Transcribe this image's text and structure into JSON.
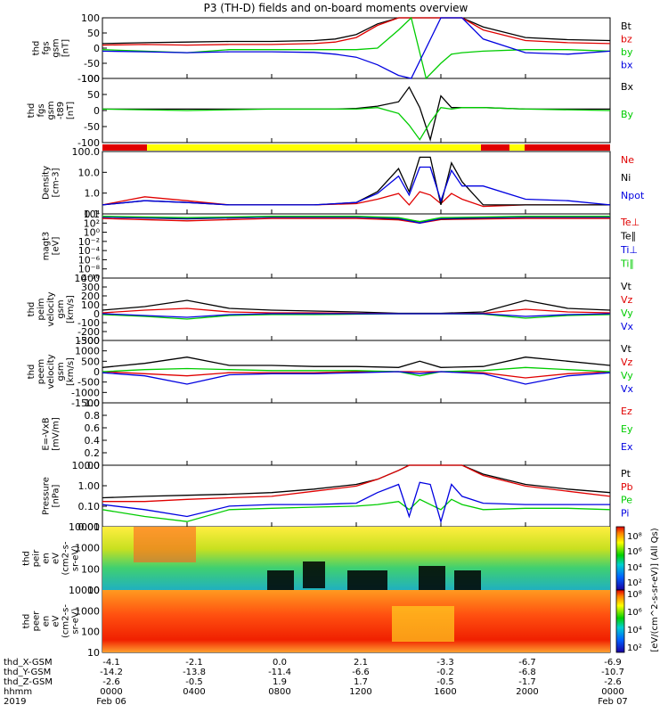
{
  "title": "P3 (TH-D) fields and on-board moments overview",
  "colors": {
    "black": "#000000",
    "red": "#e00000",
    "green": "#00cc00",
    "blue": "#0000e0",
    "yellow": "#ffff00"
  },
  "panels": [
    {
      "id": "fgs",
      "ylabel": [
        "thd",
        "fgs",
        "gsm",
        "[nT]"
      ],
      "ticks": [
        "100",
        "50",
        "0",
        "-50",
        "-100"
      ],
      "legend": [
        {
          "text": "Bt",
          "color": "#000000"
        },
        {
          "text": "bz",
          "color": "#e00000"
        },
        {
          "text": "by",
          "color": "#00cc00"
        },
        {
          "text": "bx",
          "color": "#0000e0"
        }
      ]
    },
    {
      "id": "fgs_dt",
      "ylabel": [
        "thd",
        "fgs",
        "gsm",
        "-t89",
        "[nT]"
      ],
      "ticks": [
        "100",
        "50",
        "0",
        "-50",
        "-100"
      ],
      "legend": [
        {
          "text": "Bx",
          "color": "#000000"
        },
        {
          "text": "By",
          "color": "#00cc00"
        }
      ]
    },
    {
      "id": "density",
      "ylabel": [
        "Density",
        "[cm-3]"
      ],
      "ticks": [
        "100.0",
        "10.0",
        "1.0",
        "0.1"
      ],
      "legend": [
        {
          "text": "Ne",
          "color": "#e00000"
        },
        {
          "text": "Ni",
          "color": "#000000"
        },
        {
          "text": "Npot",
          "color": "#0000e0"
        }
      ]
    },
    {
      "id": "temp",
      "ylabel": [
        "magt3",
        "[eV]"
      ],
      "ticks": [
        "10⁴",
        "10²",
        "10⁰",
        "10⁻²",
        "10⁻⁴",
        "10⁻⁶",
        "10⁻⁸",
        "10⁻¹⁰"
      ],
      "legend": [
        {
          "text": "Te⊥",
          "color": "#e00000"
        },
        {
          "text": "Te∥",
          "color": "#000000"
        },
        {
          "text": "Ti⊥",
          "color": "#0000e0"
        },
        {
          "text": "Ti∥",
          "color": "#00cc00"
        }
      ]
    },
    {
      "id": "vi",
      "ylabel": [
        "thd",
        "peim",
        "velocity",
        "gsm",
        "[km/s]"
      ],
      "ticks": [
        "400",
        "300",
        "200",
        "100",
        "0",
        "-100",
        "-200",
        "-300"
      ],
      "legend": [
        {
          "text": "Vt",
          "color": "#000000"
        },
        {
          "text": "Vz",
          "color": "#e00000"
        },
        {
          "text": "Vy",
          "color": "#00cc00"
        },
        {
          "text": "Vx",
          "color": "#0000e0"
        }
      ]
    },
    {
      "id": "ve",
      "ylabel": [
        "thd",
        "peem",
        "velocity",
        "gsm",
        "[km/s]"
      ],
      "ticks": [
        "1500",
        "1000",
        "500",
        "0",
        "-500",
        "-1000",
        "-1500"
      ],
      "legend": [
        {
          "text": "Vt",
          "color": "#000000"
        },
        {
          "text": "Vz",
          "color": "#e00000"
        },
        {
          "text": "Vy",
          "color": "#00cc00"
        },
        {
          "text": "Vx",
          "color": "#0000e0"
        }
      ]
    },
    {
      "id": "efield",
      "ylabel": [
        "E=-VxB",
        "[mV/m]"
      ],
      "ticks": [
        "1.0",
        "0.8",
        "0.6",
        "0.4",
        "0.2",
        "0.0"
      ],
      "legend": [
        {
          "text": "Ez",
          "color": "#e00000"
        },
        {
          "text": "Ey",
          "color": "#00cc00"
        },
        {
          "text": "Ex",
          "color": "#0000e0"
        }
      ]
    },
    {
      "id": "pressure",
      "ylabel": [
        "Pressure",
        "[nPa]"
      ],
      "ticks": [
        "10.00",
        "1.00",
        "0.10",
        "0.01"
      ],
      "legend": [
        {
          "text": "Pt",
          "color": "#000000"
        },
        {
          "text": "Pb",
          "color": "#e00000"
        },
        {
          "text": "Pe",
          "color": "#00cc00"
        },
        {
          "text": "Pi",
          "color": "#0000e0"
        }
      ]
    },
    {
      "id": "peir",
      "ylabel": [
        "thd",
        "peir",
        "en",
        "eV",
        "(cm2-s-",
        "sr-eV)"
      ],
      "ticks": [
        "10000",
        "1000",
        "100",
        "10"
      ],
      "legend": []
    },
    {
      "id": "peer",
      "ylabel": [
        "thd",
        "peer",
        "en",
        "eV",
        "(cm2-s-",
        "sr-eV)"
      ],
      "ticks": [
        "10000",
        "1000",
        "100",
        "10"
      ],
      "legend": []
    }
  ],
  "colorbar": {
    "label": "[eV/(cm^2-s-sr-eV)] (All Qs)",
    "ticks_top": [
      "10⁸",
      "10⁶",
      "10⁴",
      "10²"
    ],
    "ticks_bottom": [
      "10⁸",
      "10⁶",
      "10⁴",
      "10²"
    ]
  },
  "status_bar": {
    "colors": [
      "red",
      "yellow",
      "red",
      "yellow",
      "red"
    ]
  },
  "ephemeris": {
    "rows": [
      {
        "label": "thd_X-GSM",
        "values": [
          "-4.1",
          "-2.1",
          "0.0",
          "2.1",
          "",
          "-3.3",
          "",
          "-6.7",
          "",
          "-6.9"
        ]
      },
      {
        "label": "thd_Y-GSM",
        "values": [
          "-14.2",
          "-13.8",
          "-11.4",
          "-6.6",
          "",
          "-0.2",
          "",
          "-6.8",
          "",
          "-10.7"
        ]
      },
      {
        "label": "thd_Z-GSM",
        "values": [
          "-2.6",
          "-0.5",
          "1.9",
          "1.7",
          "",
          "-0.5",
          "",
          "-1.7",
          "",
          "-2.6"
        ]
      },
      {
        "label": "hhmm",
        "values": [
          "0000",
          "0400",
          "0800",
          "1200",
          "",
          "1600",
          "",
          "2000",
          "",
          "0000"
        ]
      },
      {
        "label": "2019",
        "values": [
          "Feb 06",
          "",
          "",
          "",
          "",
          "",
          "",
          "",
          "",
          "Feb 07"
        ]
      }
    ]
  },
  "chart_data": [
    {
      "type": "line",
      "title": "P3 (TH-D) fields and on-board moments overview",
      "ylabel": "thd fgs gsm [nT]",
      "ylim": [
        -100,
        100
      ],
      "x_hours": [
        0,
        2,
        4,
        6,
        8,
        10,
        11,
        12,
        13,
        14,
        14.6,
        15.3,
        16,
        16.5,
        17,
        18,
        20,
        22,
        24
      ],
      "series": [
        {
          "name": "Bt",
          "values": [
            15,
            18,
            20,
            22,
            22,
            25,
            30,
            45,
            80,
            100,
            100,
            100,
            100,
            100,
            100,
            70,
            35,
            28,
            25
          ]
        },
        {
          "name": "bz",
          "values": [
            10,
            12,
            10,
            12,
            12,
            15,
            20,
            35,
            75,
            100,
            100,
            100,
            100,
            100,
            100,
            60,
            25,
            18,
            15
          ]
        },
        {
          "name": "by",
          "values": [
            -5,
            -10,
            -15,
            -5,
            -5,
            -5,
            -5,
            -5,
            0,
            60,
            100,
            -100,
            -50,
            -20,
            -15,
            -10,
            -5,
            -5,
            -10
          ]
        },
        {
          "name": "bx",
          "values": [
            -10,
            -12,
            -15,
            -12,
            -12,
            -14,
            -20,
            -30,
            -55,
            -90,
            -100,
            0,
            100,
            100,
            100,
            30,
            -15,
            -20,
            -10
          ]
        }
      ]
    },
    {
      "type": "line",
      "ylabel": "thd fgs gsm -t89 [nT]",
      "ylim": [
        -120,
        100
      ],
      "x_hours": [
        0,
        4,
        8,
        11,
        12,
        13,
        14,
        14.5,
        15,
        15.5,
        16,
        16.5,
        17,
        18,
        20,
        24
      ],
      "series": [
        {
          "name": "Bx",
          "values": [
            -5,
            -5,
            -5,
            -5,
            -3,
            5,
            20,
            70,
            0,
            -110,
            40,
            0,
            0,
            0,
            -5,
            -5
          ]
        },
        {
          "name": "By",
          "values": [
            -5,
            -10,
            -5,
            -5,
            -5,
            0,
            -20,
            -60,
            -110,
            -50,
            0,
            -5,
            0,
            0,
            -5,
            -10
          ]
        }
      ]
    },
    {
      "type": "line",
      "ylabel": "Density [cm-3]",
      "yscale": "log",
      "ylim": [
        0.1,
        200
      ],
      "x_hours": [
        0,
        2,
        4,
        6,
        8,
        10,
        12,
        13,
        14,
        14.5,
        15,
        15.5,
        16,
        16.5,
        17,
        18,
        20,
        22,
        24
      ],
      "series": [
        {
          "name": "Ne",
          "values": [
            0.3,
            0.8,
            0.5,
            0.3,
            0.3,
            0.3,
            0.35,
            0.6,
            1.2,
            0.3,
            1.5,
            1.0,
            0.35,
            1.2,
            0.6,
            0.25,
            0.3,
            0.3,
            0.3
          ]
        },
        {
          "name": "Ni",
          "values": [
            0.3,
            0.5,
            0.4,
            0.3,
            0.3,
            0.3,
            0.4,
            1.5,
            25,
            1.5,
            100,
            100,
            0.3,
            50,
            5,
            0.3,
            0.3,
            0.3,
            0.3
          ]
        },
        {
          "name": "Npot",
          "values": [
            0.3,
            0.5,
            0.4,
            0.3,
            0.3,
            0.3,
            0.4,
            1.2,
            10,
            1.0,
            30,
            30,
            0.5,
            20,
            3,
            3,
            0.6,
            0.5,
            0.3
          ]
        }
      ]
    },
    {
      "type": "line",
      "ylabel": "magt3 [eV]",
      "yscale": "log",
      "ylim": [
        1e-10,
        10000.0
      ],
      "x_hours": [
        0,
        4,
        8,
        12,
        14,
        15,
        16,
        20,
        24
      ],
      "series": [
        {
          "name": "Te⊥",
          "values": [
            1000,
            300,
            1000,
            1000,
            500,
            100,
            600,
            1000,
            1000
          ]
        },
        {
          "name": "Te∥",
          "values": [
            2000,
            800,
            2000,
            2000,
            800,
            200,
            800,
            2000,
            2000
          ]
        },
        {
          "name": "Ti⊥",
          "values": [
            2000,
            1000,
            2000,
            2000,
            1000,
            100,
            1000,
            2000,
            2000
          ]
        },
        {
          "name": "Ti∥",
          "values": [
            3000,
            1500,
            3000,
            3000,
            1500,
            200,
            1500,
            3000,
            3000
          ]
        }
      ]
    },
    {
      "type": "line",
      "ylabel": "thd peim velocity gsm [km/s]",
      "ylim": [
        -300,
        400
      ],
      "x_hours": [
        0,
        2,
        4,
        6,
        8,
        10,
        12,
        14,
        16,
        18,
        20,
        22,
        24
      ],
      "series": [
        {
          "name": "Vt",
          "values": [
            40,
            80,
            150,
            60,
            40,
            30,
            20,
            5,
            5,
            20,
            150,
            60,
            40
          ]
        },
        {
          "name": "Vz",
          "values": [
            10,
            40,
            60,
            20,
            10,
            10,
            5,
            0,
            0,
            5,
            50,
            20,
            10
          ]
        },
        {
          "name": "Vy",
          "values": [
            -10,
            -30,
            -60,
            -20,
            -10,
            -10,
            -5,
            0,
            0,
            -5,
            -50,
            -20,
            -10
          ]
        },
        {
          "name": "Vx",
          "values": [
            0,
            -20,
            -40,
            -10,
            0,
            0,
            0,
            0,
            0,
            0,
            -30,
            -10,
            0
          ]
        }
      ]
    },
    {
      "type": "line",
      "ylabel": "thd peem velocity gsm [km/s]",
      "ylim": [
        -1500,
        1500
      ],
      "x_hours": [
        0,
        2,
        4,
        6,
        8,
        10,
        12,
        14,
        15,
        16,
        18,
        20,
        22,
        24
      ],
      "series": [
        {
          "name": "Vt",
          "values": [
            200,
            400,
            700,
            300,
            300,
            250,
            250,
            200,
            500,
            200,
            250,
            700,
            500,
            300
          ]
        },
        {
          "name": "Vz",
          "values": [
            0,
            -100,
            -200,
            -50,
            -50,
            -50,
            0,
            0,
            0,
            0,
            -50,
            -300,
            -100,
            0
          ]
        },
        {
          "name": "Vy",
          "values": [
            0,
            100,
            150,
            100,
            50,
            50,
            50,
            0,
            -200,
            0,
            50,
            200,
            100,
            0
          ]
        },
        {
          "name": "Vx",
          "values": [
            -50,
            -200,
            -600,
            -150,
            -100,
            -100,
            -50,
            0,
            -100,
            0,
            -100,
            -600,
            -200,
            -50
          ]
        }
      ]
    },
    {
      "type": "line",
      "ylabel": "E=-VxB [mV/m]",
      "ylim": [
        0,
        1
      ],
      "series": [
        {
          "name": "Ez",
          "values": []
        },
        {
          "name": "Ey",
          "values": []
        },
        {
          "name": "Ex",
          "values": []
        }
      ]
    },
    {
      "type": "line",
      "ylabel": "Pressure [nPa]",
      "yscale": "log",
      "ylim": [
        0.005,
        20
      ],
      "x_hours": [
        0,
        2,
        4,
        6,
        8,
        10,
        12,
        13,
        14,
        14.5,
        15,
        15.5,
        16,
        16.5,
        17,
        18,
        20,
        22,
        24
      ],
      "series": [
        {
          "name": "Pt",
          "values": [
            0.25,
            0.3,
            0.35,
            0.4,
            0.5,
            0.8,
            1.5,
            3,
            10,
            20,
            20,
            20,
            20,
            20,
            20,
            6,
            1.5,
            0.8,
            0.5
          ]
        },
        {
          "name": "Pb",
          "values": [
            0.15,
            0.15,
            0.2,
            0.25,
            0.3,
            0.6,
            1.2,
            3,
            10,
            20,
            20,
            20,
            20,
            20,
            20,
            5,
            1.2,
            0.6,
            0.3
          ]
        },
        {
          "name": "Pe",
          "values": [
            0.05,
            0.02,
            0.01,
            0.05,
            0.06,
            0.07,
            0.08,
            0.1,
            0.15,
            0.05,
            0.2,
            0.1,
            0.05,
            0.2,
            0.1,
            0.05,
            0.06,
            0.06,
            0.05
          ]
        },
        {
          "name": "Pi",
          "values": [
            0.1,
            0.05,
            0.02,
            0.08,
            0.1,
            0.1,
            0.12,
            0.5,
            1.5,
            0.02,
            2,
            1.5,
            0.01,
            1.5,
            0.3,
            0.12,
            0.1,
            0.1,
            0.1
          ]
        }
      ]
    },
    {
      "type": "heatmap",
      "ylabel": "thd peir en eV (cm2-s-sr-eV)",
      "yscale": "log",
      "ylim": [
        7,
        20000
      ]
    },
    {
      "type": "heatmap",
      "ylabel": "thd peer en eV (cm2-s-sr-eV)",
      "yscale": "log",
      "ylim": [
        7,
        20000
      ]
    }
  ]
}
